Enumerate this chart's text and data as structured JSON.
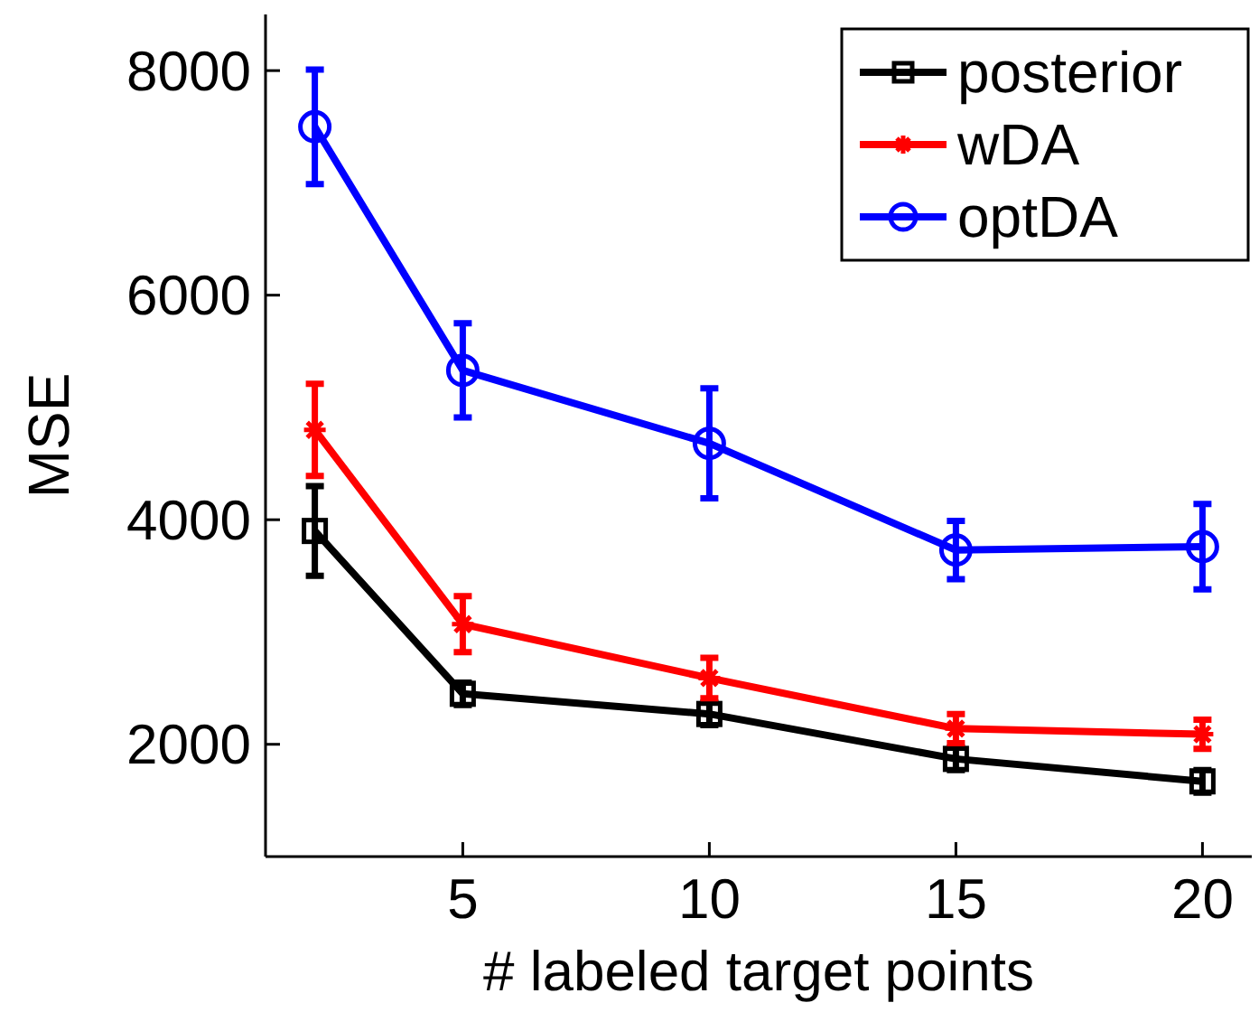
{
  "chart_data": {
    "type": "line",
    "xlabel": "# labeled target points",
    "ylabel": "MSE",
    "x": [
      2,
      5,
      10,
      15,
      20
    ],
    "xlim": [
      1,
      21
    ],
    "xticks": [
      5,
      10,
      15,
      20
    ],
    "ylim": [
      1000,
      8500
    ],
    "yticks": [
      2000,
      4000,
      6000,
      8000
    ],
    "grid": false,
    "legend": "top right",
    "series": [
      {
        "name": "posterior",
        "color": "#000000",
        "marker": "square",
        "values": [
          3900,
          2450,
          2270,
          1870,
          1670
        ],
        "errors": [
          400,
          100,
          100,
          100,
          100
        ]
      },
      {
        "name": "wDA",
        "color": "#ff0000",
        "marker": "cross",
        "values": [
          4800,
          3070,
          2590,
          2140,
          2090
        ],
        "errors": [
          410,
          250,
          180,
          130,
          130
        ]
      },
      {
        "name": "optDA",
        "color": "#0000ff",
        "marker": "circle",
        "values": [
          7500,
          5330,
          4680,
          3730,
          3760
        ],
        "errors": [
          510,
          420,
          490,
          260,
          380
        ]
      }
    ]
  }
}
